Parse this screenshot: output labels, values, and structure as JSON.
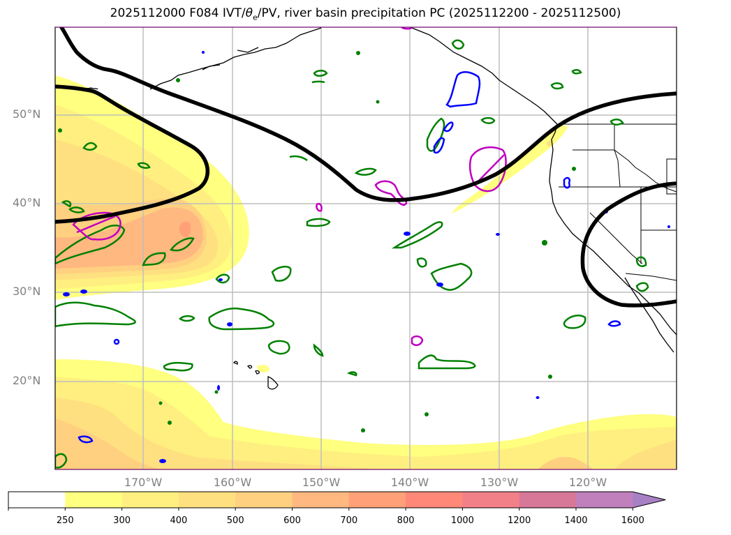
{
  "title": {
    "prefix": "2025112000 F084 IVT/",
    "theta": "θ",
    "theta_sub": "e",
    "suffix": "/PV, river basin precipitation PC (2025112200 - 2025112500)"
  },
  "map": {
    "projection": "PlateCarree",
    "extent_lon": [
      -180,
      -110
    ],
    "extent_lat": [
      10,
      60
    ],
    "lat_labels": [
      "50°N",
      "40°N",
      "30°N",
      "20°N"
    ],
    "lon_labels": [
      "170°W",
      "160°W",
      "150°W",
      "140°W",
      "130°W",
      "120°W"
    ],
    "layers": [
      {
        "name": "IVT shading",
        "color": "#ffff80"
      },
      {
        "name": "PV contour",
        "color": "#000000"
      },
      {
        "name": "theta-e contour",
        "color": "#008000"
      },
      {
        "name": "precip PC contour",
        "color": "#0000ff"
      },
      {
        "name": "high-IVT contour",
        "color": "#c000c0"
      },
      {
        "name": "coastlines/borders",
        "color": "#000000"
      }
    ]
  },
  "colorbar": {
    "levels": [
      "250",
      "300",
      "400",
      "500",
      "600",
      "700",
      "800",
      "1000",
      "1200",
      "1400",
      "1600"
    ],
    "colors": [
      "#ffffff",
      "#ffff80",
      "#ffef80",
      "#ffe080",
      "#ffd080",
      "#ffb880",
      "#ffa078",
      "#ff8878",
      "#f28088",
      "#d87898",
      "#c080bc",
      "#a880c4"
    ],
    "extend": "max"
  }
}
